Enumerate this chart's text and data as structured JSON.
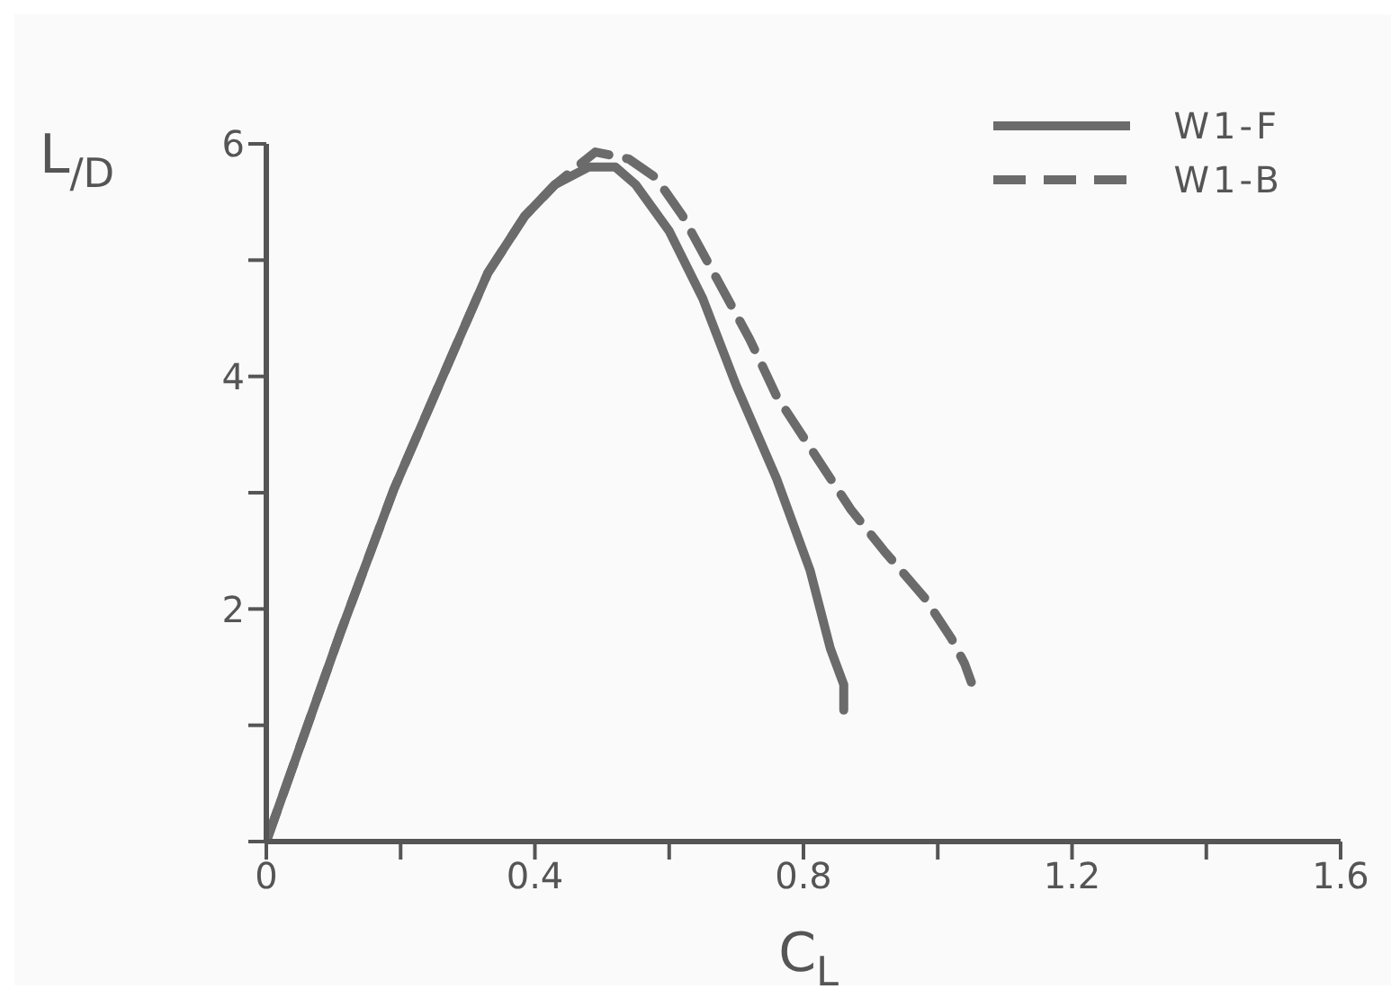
{
  "chart_data": {
    "type": "line",
    "xlabel": "C$_{L}$",
    "ylabel": "L$_{/D}$",
    "xlim": [
      0,
      1.6
    ],
    "ylim": [
      0,
      6
    ],
    "xticks": [
      0,
      {
        "value": 0.2,
        "label": null
      },
      0.4,
      {
        "value": 0.6,
        "label": null
      },
      0.8,
      {
        "value": 1.0,
        "label": null
      },
      1.2,
      {
        "value": 1.4,
        "label": null
      },
      1.6
    ],
    "yticks": [
      {
        "value": 0,
        "label": null
      },
      {
        "value": 1,
        "label": null
      },
      2,
      {
        "value": 3,
        "label": null
      },
      4,
      {
        "value": 5,
        "label": null
      },
      6
    ],
    "grid": false,
    "legend": "top right",
    "marker": "none",
    "series": [
      {
        "name": "W1-F",
        "color": "#6b6b6b",
        "line_style": "solid",
        "x": [
          0,
          0.11,
          0.19,
          0.28,
          0.33,
          0.385,
          0.43,
          0.48,
          0.52,
          0.55,
          0.6,
          0.65,
          0.7,
          0.76,
          0.81,
          0.84,
          0.86,
          0.86
        ],
        "values": [
          0,
          1.79,
          3.03,
          4.23,
          4.89,
          5.38,
          5.65,
          5.8,
          5.8,
          5.65,
          5.25,
          4.67,
          3.92,
          3.12,
          2.33,
          1.66,
          1.35,
          1.13
        ]
      },
      {
        "name": "W1-B",
        "color": "#6b6b6b",
        "line_style": "dashed",
        "x": [
          0,
          0.11,
          0.19,
          0.28,
          0.33,
          0.385,
          0.43,
          0.49,
          0.54,
          0.58,
          0.62,
          0.67,
          0.72,
          0.76,
          0.82,
          0.87,
          0.92,
          0.98,
          1.02,
          1.04,
          1.05
        ],
        "values": [
          0,
          1.79,
          3.03,
          4.23,
          4.89,
          5.38,
          5.65,
          5.93,
          5.87,
          5.71,
          5.38,
          4.85,
          4.32,
          3.83,
          3.3,
          2.86,
          2.5,
          2.1,
          1.75,
          1.53,
          1.37
        ]
      }
    ]
  }
}
